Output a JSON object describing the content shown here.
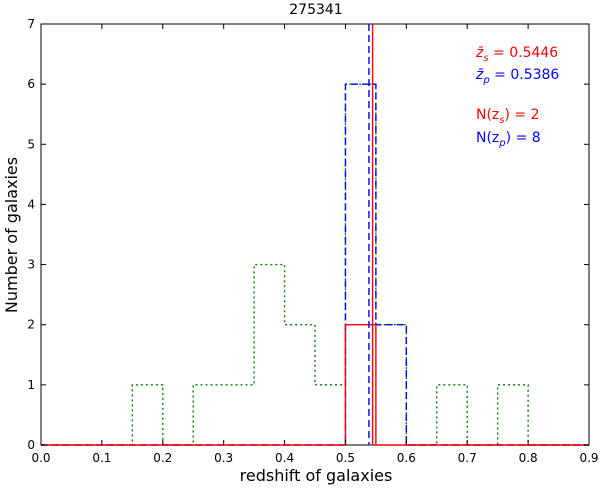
{
  "chart_data": {
    "type": "histogram",
    "title": "275341",
    "xlabel": "redshift of galaxies",
    "ylabel": "Number of galaxies",
    "xlim": [
      0.0,
      0.9
    ],
    "ylim": [
      0,
      7
    ],
    "grid": false,
    "xticks": [
      "0.0",
      "0.1",
      "0.2",
      "0.3",
      "0.4",
      "0.5",
      "0.6",
      "0.7",
      "0.8",
      "0.9"
    ],
    "yticks": [
      "0",
      "1",
      "2",
      "3",
      "4",
      "5",
      "6",
      "7"
    ],
    "bin_edges": [
      0.0,
      0.05,
      0.1,
      0.15,
      0.2,
      0.25,
      0.3,
      0.35,
      0.4,
      0.45,
      0.5,
      0.55,
      0.6,
      0.65,
      0.7,
      0.75,
      0.8,
      0.85,
      0.9
    ],
    "series": [
      {
        "style": "dotted",
        "color": "#008000",
        "counts": [
          0,
          0,
          0,
          1,
          0,
          1,
          1,
          3,
          2,
          1,
          6,
          2,
          0,
          1,
          0,
          1,
          0,
          0
        ]
      },
      {
        "style": "dashed",
        "color": "#0000ff",
        "counts": [
          0,
          0,
          0,
          0,
          0,
          0,
          0,
          0,
          0,
          0,
          6,
          2,
          0,
          0,
          0,
          0,
          0,
          0
        ]
      },
      {
        "style": "solid",
        "color": "#ff0000",
        "counts": [
          0,
          0,
          0,
          0,
          0,
          0,
          0,
          0,
          0,
          0,
          2,
          0,
          0,
          0,
          0,
          0,
          0,
          0
        ]
      }
    ],
    "vertical_lines": [
      {
        "x": 0.5446,
        "color": "#ff0000",
        "style": "solid"
      },
      {
        "x": 0.5386,
        "color": "#0000ff",
        "style": "dashed"
      }
    ],
    "annotations": {
      "zs_mean": {
        "symbol": "z̄",
        "sub": "s",
        "rest": " = 0.5446",
        "color": "#ff0000"
      },
      "zp_mean": {
        "symbol": "z̄",
        "sub": "p",
        "rest": " = 0.5386",
        "color": "#0000ff"
      },
      "n_zs": {
        "pre": "N(z",
        "sub": "s",
        "post": ") = 2",
        "color": "#ff0000"
      },
      "n_zp": {
        "pre": "N(z",
        "sub": "p",
        "post": ") = 8",
        "color": "#0000ff"
      }
    }
  }
}
